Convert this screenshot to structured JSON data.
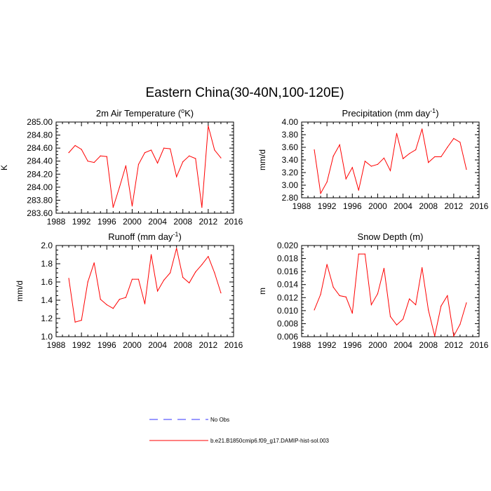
{
  "figure": {
    "title": "Eastern China(30-40N,100-120E)"
  },
  "legend": [
    {
      "label": "No Obs",
      "color": "#3333ff",
      "style": "dashed"
    },
    {
      "label": "b.e21.B1850cmip6.f09_g17.DAMIP-hist-sol.003",
      "color": "#ff0000",
      "style": "solid"
    }
  ],
  "chart_data": [
    {
      "type": "line",
      "title": "2m Air Temperature (",
      "title_rich": {
        "pre": "2m Air Temperature (",
        "sup": "o",
        "post": "K)"
      },
      "ylabel": "K",
      "xlim": [
        1988,
        2016
      ],
      "ylim": [
        283.6,
        285.0
      ],
      "xticks": [
        1988,
        1992,
        1996,
        2000,
        2004,
        2008,
        2012,
        2016
      ],
      "yticks": [
        "283.60",
        "283.80",
        "284.00",
        "284.20",
        "284.40",
        "284.60",
        "284.80",
        "285.00"
      ],
      "ytick_values": [
        283.6,
        283.8,
        284.0,
        284.2,
        284.4,
        284.6,
        284.8,
        285.0
      ],
      "x": [
        1990,
        1991,
        1992,
        1993,
        1994,
        1995,
        1996,
        1997,
        1998,
        1999,
        2000,
        2001,
        2002,
        2003,
        2004,
        2005,
        2006,
        2007,
        2008,
        2009,
        2010,
        2011,
        2012,
        2013,
        2014
      ],
      "series": [
        {
          "color": "#ff0000",
          "values": [
            284.53,
            284.64,
            284.58,
            284.4,
            284.38,
            284.48,
            284.47,
            283.69,
            284.0,
            284.33,
            283.71,
            284.35,
            284.53,
            284.57,
            284.37,
            284.6,
            284.59,
            284.16,
            284.39,
            284.48,
            284.44,
            283.69,
            284.94,
            284.57,
            284.45
          ]
        }
      ]
    },
    {
      "type": "line",
      "title_rich": {
        "pre": "Precipitation (mm day",
        "sup": "-1",
        "post": ")"
      },
      "ylabel": "mm/d",
      "xlim": [
        1988,
        2016
      ],
      "ylim": [
        2.8,
        4.0
      ],
      "xticks": [
        1988,
        1992,
        1996,
        2000,
        2004,
        2008,
        2012,
        2016
      ],
      "yticks": [
        "2.80",
        "3.00",
        "3.20",
        "3.40",
        "3.60",
        "3.80",
        "4.00"
      ],
      "ytick_values": [
        2.8,
        3.0,
        3.2,
        3.4,
        3.6,
        3.8,
        4.0
      ],
      "x": [
        1990,
        1991,
        1992,
        1993,
        1994,
        1995,
        1996,
        1997,
        1998,
        1999,
        2000,
        2001,
        2002,
        2003,
        2004,
        2005,
        2006,
        2007,
        2008,
        2009,
        2010,
        2011,
        2012,
        2013,
        2014
      ],
      "series": [
        {
          "color": "#ff0000",
          "values": [
            3.56,
            2.87,
            3.05,
            3.46,
            3.64,
            3.1,
            3.28,
            2.92,
            3.38,
            3.3,
            3.33,
            3.43,
            3.23,
            3.82,
            3.42,
            3.5,
            3.56,
            3.89,
            3.36,
            3.45,
            3.45,
            3.6,
            3.74,
            3.68,
            3.25
          ]
        }
      ]
    },
    {
      "type": "line",
      "title_rich": {
        "pre": "Runoff (mm day",
        "sup": "-1",
        "post": ")"
      },
      "ylabel": "mm/d",
      "xlim": [
        1988,
        2016
      ],
      "ylim": [
        1.0,
        2.0
      ],
      "xticks": [
        1988,
        1992,
        1996,
        2000,
        2004,
        2008,
        2012,
        2016
      ],
      "yticks": [
        "1.0",
        "1.2",
        "1.4",
        "1.6",
        "1.8",
        "2.0"
      ],
      "ytick_values": [
        1.0,
        1.2,
        1.4,
        1.6,
        1.8,
        2.0
      ],
      "x": [
        1990,
        1991,
        1992,
        1993,
        1994,
        1995,
        1996,
        1997,
        1998,
        1999,
        2000,
        2001,
        2002,
        2003,
        2004,
        2005,
        2006,
        2007,
        2008,
        2009,
        2010,
        2011,
        2012,
        2013,
        2014
      ],
      "series": [
        {
          "color": "#ff0000",
          "values": [
            1.64,
            1.16,
            1.18,
            1.6,
            1.81,
            1.41,
            1.35,
            1.31,
            1.41,
            1.43,
            1.63,
            1.63,
            1.36,
            1.9,
            1.5,
            1.62,
            1.7,
            1.97,
            1.65,
            1.59,
            1.71,
            1.79,
            1.88,
            1.7,
            1.48
          ]
        }
      ]
    },
    {
      "type": "line",
      "title_rich": {
        "pre": "Snow Depth (m)",
        "sup": "",
        "post": ""
      },
      "ylabel": "m",
      "xlim": [
        1988,
        2016
      ],
      "ylim": [
        0.006,
        0.02
      ],
      "xticks": [
        1988,
        1992,
        1996,
        2000,
        2004,
        2008,
        2012,
        2016
      ],
      "yticks": [
        "0.006",
        "0.008",
        "0.010",
        "0.012",
        "0.014",
        "0.016",
        "0.018",
        "0.020"
      ],
      "ytick_values": [
        0.006,
        0.008,
        0.01,
        0.012,
        0.014,
        0.016,
        0.018,
        0.02
      ],
      "x": [
        1990,
        1991,
        1992,
        1993,
        1994,
        1995,
        1996,
        1997,
        1998,
        1999,
        2000,
        2001,
        2002,
        2003,
        2004,
        2005,
        2006,
        2007,
        2008,
        2009,
        2010,
        2011,
        2012,
        2013,
        2014
      ],
      "series": [
        {
          "color": "#ff0000",
          "values": [
            0.0101,
            0.0125,
            0.0171,
            0.0136,
            0.0123,
            0.0121,
            0.0096,
            0.0187,
            0.0187,
            0.0109,
            0.0126,
            0.0165,
            0.0091,
            0.0078,
            0.0087,
            0.0118,
            0.0109,
            0.0166,
            0.0101,
            0.0061,
            0.0107,
            0.0123,
            0.0061,
            0.0079,
            0.0112
          ]
        }
      ]
    }
  ]
}
